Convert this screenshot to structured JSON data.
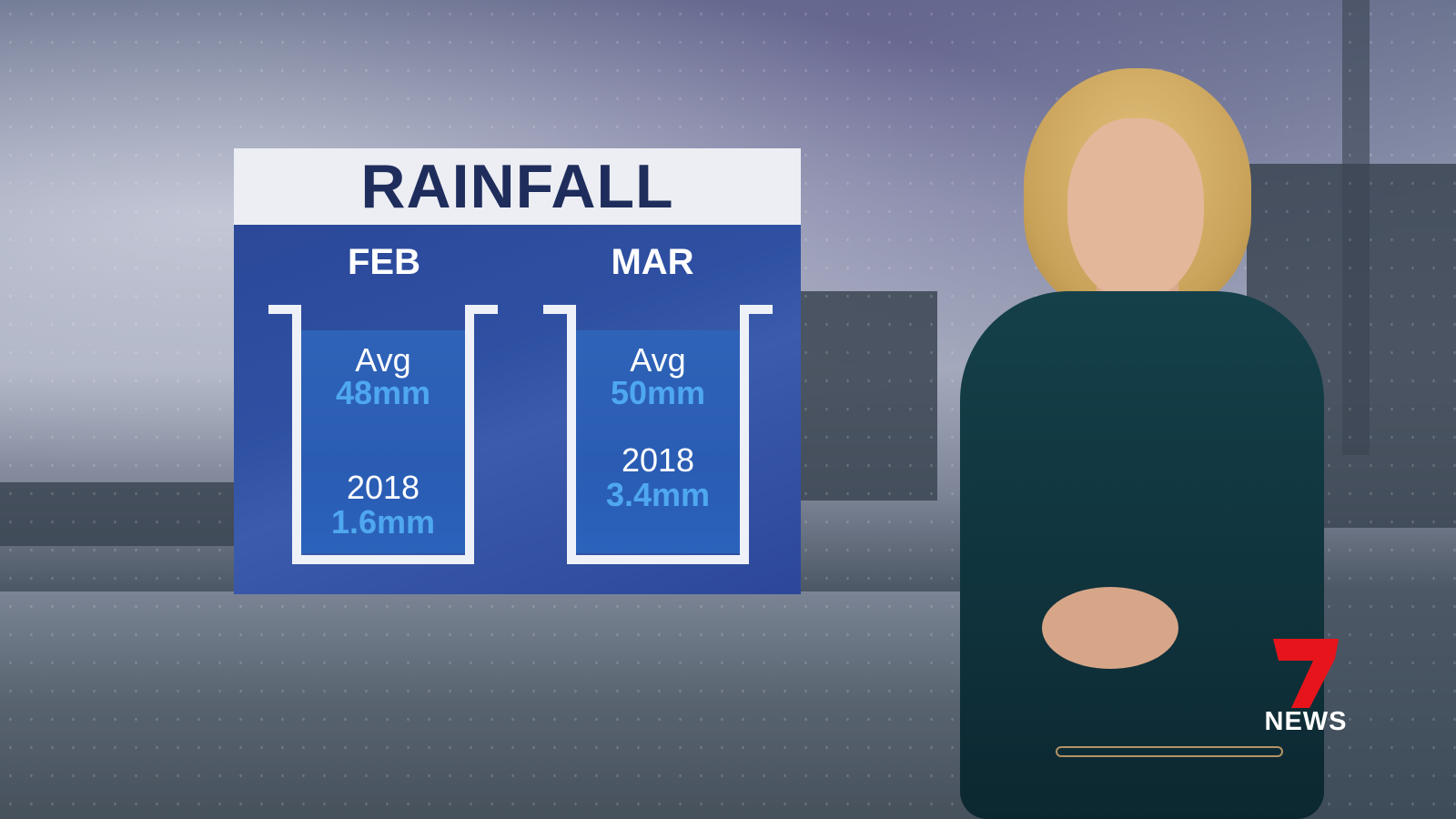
{
  "graphic": {
    "title": "RAINFALL",
    "months": [
      {
        "name": "FEB",
        "avg_label": "Avg",
        "avg_value": "48mm",
        "year_label": "2018",
        "year_value": "1.6mm"
      },
      {
        "name": "MAR",
        "avg_label": "Avg",
        "avg_value": "50mm",
        "year_label": "2018",
        "year_value": "3.4mm"
      }
    ],
    "colors": {
      "title": "#1f2d5c",
      "panel": "#2f50a2",
      "value": "#4fa8ef"
    }
  },
  "logo": {
    "number": "7",
    "text": "NEWS",
    "color": "#e8141b"
  }
}
